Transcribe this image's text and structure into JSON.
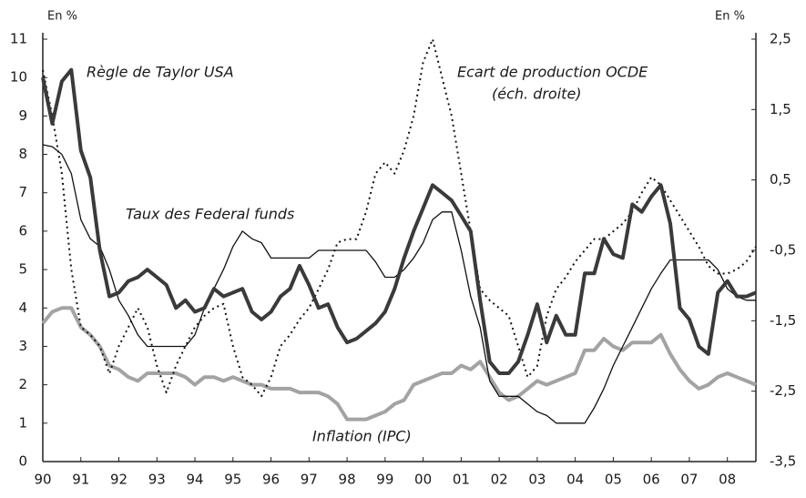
{
  "chart_data": {
    "type": "line",
    "y_unit_left": "En %",
    "y_unit_right": "En %",
    "annotations": [
      "(éch. droite)"
    ],
    "x": [
      1990,
      1990.25,
      1990.5,
      1990.75,
      1991,
      1991.25,
      1991.5,
      1991.75,
      1992,
      1992.25,
      1992.5,
      1992.75,
      1993,
      1993.25,
      1993.5,
      1993.75,
      1994,
      1994.25,
      1994.5,
      1994.75,
      1995,
      1995.25,
      1995.5,
      1995.75,
      1996,
      1996.25,
      1996.5,
      1996.75,
      1997,
      1997.25,
      1997.5,
      1997.75,
      1998,
      1998.25,
      1998.5,
      1998.75,
      1999,
      1999.25,
      1999.5,
      1999.75,
      2000,
      2000.25,
      2000.5,
      2000.75,
      2001,
      2001.25,
      2001.5,
      2001.75,
      2002,
      2002.25,
      2002.5,
      2002.75,
      2003,
      2003.25,
      2003.5,
      2003.75,
      2004,
      2004.25,
      2004.5,
      2004.75,
      2005,
      2005.25,
      2005.5,
      2005.75,
      2006,
      2006.25,
      2006.5,
      2006.75,
      2007,
      2007.25,
      2007.5,
      2007.75,
      2008,
      2008.25,
      2008.5,
      2008.75
    ],
    "series": [
      {
        "name": "Règle de Taylor USA",
        "color": "#3a3a3a",
        "width": 4,
        "values": [
          10.0,
          8.8,
          9.9,
          10.2,
          8.1,
          7.4,
          5.5,
          4.3,
          4.4,
          4.7,
          4.8,
          5.0,
          4.8,
          4.6,
          4.0,
          4.2,
          3.9,
          4.0,
          4.5,
          4.3,
          4.4,
          4.5,
          3.9,
          3.7,
          3.9,
          4.3,
          4.5,
          5.1,
          4.6,
          4.0,
          4.1,
          3.5,
          3.1,
          3.2,
          3.4,
          3.6,
          3.9,
          4.5,
          5.3,
          6.0,
          6.6,
          7.2,
          7.0,
          6.8,
          6.4,
          6.0,
          4.2,
          2.6,
          2.3,
          2.3,
          2.6,
          3.3,
          4.1,
          3.1,
          3.8,
          3.3,
          3.3,
          4.9,
          4.9,
          5.8,
          5.4,
          5.3,
          6.7,
          6.5,
          6.9,
          7.2,
          6.2,
          4.0,
          3.7,
          3.0,
          2.8,
          4.4,
          4.7,
          4.3,
          4.3,
          4.4
        ]
      },
      {
        "name": "Taux des Federal funds",
        "color": "#111111",
        "width": 1.3,
        "values": [
          8.25,
          8.2,
          8.0,
          7.5,
          6.3,
          5.8,
          5.6,
          5.0,
          4.2,
          3.8,
          3.3,
          3.0,
          3.0,
          3.0,
          3.0,
          3.0,
          3.3,
          4.0,
          4.5,
          5.0,
          5.6,
          6.0,
          5.8,
          5.7,
          5.3,
          5.3,
          5.3,
          5.3,
          5.3,
          5.5,
          5.5,
          5.5,
          5.5,
          5.5,
          5.5,
          5.2,
          4.8,
          4.8,
          5.0,
          5.3,
          5.7,
          6.3,
          6.5,
          6.5,
          5.5,
          4.3,
          3.5,
          2.1,
          1.7,
          1.7,
          1.7,
          1.5,
          1.3,
          1.2,
          1.0,
          1.0,
          1.0,
          1.0,
          1.4,
          1.9,
          2.5,
          3.0,
          3.5,
          4.0,
          4.5,
          4.9,
          5.25,
          5.25,
          5.25,
          5.25,
          5.25,
          5.0,
          4.5,
          4.3,
          4.2,
          4.2
        ]
      },
      {
        "name": "Inflation (IPC)",
        "color": "#a3a3a3",
        "width": 4,
        "values": [
          3.6,
          3.9,
          4.0,
          4.0,
          3.5,
          3.3,
          3.0,
          2.5,
          2.4,
          2.2,
          2.1,
          2.3,
          2.3,
          2.3,
          2.3,
          2.2,
          2.0,
          2.2,
          2.2,
          2.1,
          2.2,
          2.1,
          2.0,
          2.0,
          1.9,
          1.9,
          1.9,
          1.8,
          1.8,
          1.8,
          1.7,
          1.5,
          1.1,
          1.1,
          1.1,
          1.2,
          1.3,
          1.5,
          1.6,
          2.0,
          2.1,
          2.2,
          2.3,
          2.3,
          2.5,
          2.4,
          2.6,
          2.2,
          1.8,
          1.6,
          1.7,
          1.9,
          2.1,
          2.0,
          2.1,
          2.2,
          2.3,
          2.9,
          2.9,
          3.2,
          3.0,
          2.9,
          3.1,
          3.1,
          3.1,
          3.3,
          2.8,
          2.4,
          2.1,
          1.9,
          2.0,
          2.2,
          2.3,
          2.2,
          2.1,
          2.0
        ]
      },
      {
        "name": "Ecart de production OCDE",
        "color": "#111111",
        "width": 2,
        "dash": "2 4",
        "axis": "y2",
        "values": [
          2.06,
          1.41,
          0.59,
          -0.77,
          -1.59,
          -1.7,
          -1.86,
          -2.25,
          -1.86,
          -1.59,
          -1.32,
          -1.59,
          -2.14,
          -2.52,
          -2.14,
          -1.86,
          -1.59,
          -1.43,
          -1.32,
          -1.26,
          -1.86,
          -2.3,
          -2.41,
          -2.57,
          -2.3,
          -1.86,
          -1.7,
          -1.48,
          -1.32,
          -1.05,
          -0.77,
          -0.39,
          -0.34,
          -0.34,
          0.05,
          0.59,
          0.75,
          0.59,
          0.92,
          1.41,
          2.17,
          2.5,
          1.95,
          1.41,
          0.59,
          -0.23,
          -1.05,
          -1.21,
          -1.32,
          -1.43,
          -1.86,
          -2.3,
          -2.14,
          -1.43,
          -1.05,
          -0.88,
          -0.66,
          -0.5,
          -0.34,
          -0.34,
          -0.23,
          -0.12,
          0.05,
          0.32,
          0.54,
          0.43,
          0.21,
          -0.01,
          -0.23,
          -0.45,
          -0.72,
          -0.83,
          -0.83,
          -0.77,
          -0.66,
          -0.45
        ]
      }
    ],
    "xlim": [
      1990,
      2008.75
    ],
    "xticks": [
      {
        "value": 1990,
        "label": "90"
      },
      {
        "value": 1991,
        "label": "91"
      },
      {
        "value": 1992,
        "label": "92"
      },
      {
        "value": 1993,
        "label": "93"
      },
      {
        "value": 1994,
        "label": "94"
      },
      {
        "value": 1995,
        "label": "95"
      },
      {
        "value": 1996,
        "label": "96"
      },
      {
        "value": 1997,
        "label": "97"
      },
      {
        "value": 1998,
        "label": "98"
      },
      {
        "value": 1999,
        "label": "99"
      },
      {
        "value": 2000,
        "label": "00"
      },
      {
        "value": 2001,
        "label": "01"
      },
      {
        "value": 2002,
        "label": "02"
      },
      {
        "value": 2003,
        "label": "03"
      },
      {
        "value": 2004,
        "label": "04"
      },
      {
        "value": 2005,
        "label": "05"
      },
      {
        "value": 2006,
        "label": "06"
      },
      {
        "value": 2007,
        "label": "07"
      },
      {
        "value": 2008,
        "label": "08"
      }
    ],
    "ylim": [
      0,
      11
    ],
    "yticks": [
      0,
      1,
      2,
      3,
      4,
      5,
      6,
      7,
      8,
      9,
      10,
      11
    ],
    "y2lim": [
      -3.5,
      2.5
    ],
    "y2ticks": [
      {
        "value": -3.5,
        "label": "-3,5"
      },
      {
        "value": -2.5,
        "label": "-2,5"
      },
      {
        "value": -1.5,
        "label": "-1,5"
      },
      {
        "value": -0.5,
        "label": "-0,5"
      },
      {
        "value": 0.5,
        "label": "0,5"
      },
      {
        "value": 1.5,
        "label": "1,5"
      },
      {
        "value": 2.5,
        "label": "2,5"
      }
    ],
    "grid": false
  }
}
